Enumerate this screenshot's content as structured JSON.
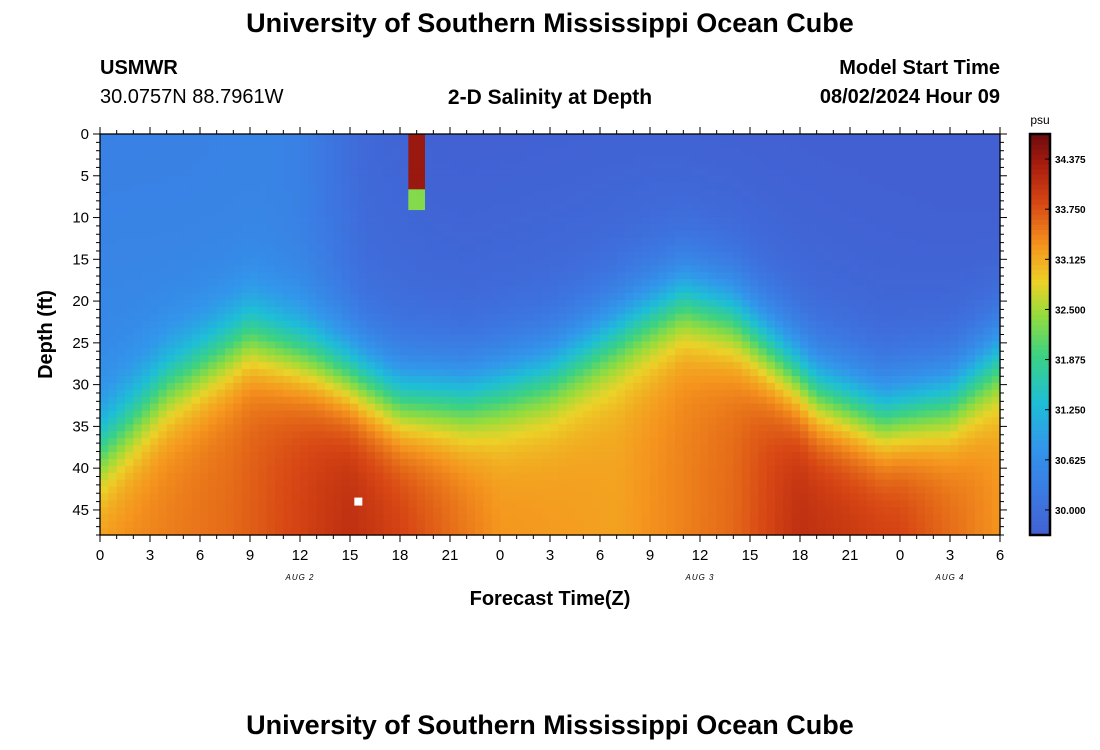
{
  "page": {
    "title_top": "University of Southern Mississippi Ocean Cube",
    "title_bottom": "University of Southern Mississippi Ocean Cube",
    "station": {
      "id": "USMWR",
      "coords": "30.0757N  88.7961W"
    },
    "chart_title": "2-D Salinity at Depth",
    "model_start": {
      "label": "Model Start Time",
      "value": "08/02/2024 Hour 09"
    }
  },
  "chart_data": {
    "type": "heatmap",
    "title": "2-D Salinity at Depth",
    "xlabel": "Forecast Time(Z)",
    "ylabel": "Depth (ft)",
    "x_range_hours": [
      0,
      54
    ],
    "x_ticks": [
      "0",
      "3",
      "6",
      "9",
      "12",
      "15",
      "18",
      "21",
      "0",
      "3",
      "6",
      "9",
      "12",
      "15",
      "18",
      "21",
      "0",
      "3",
      "6"
    ],
    "day_labels": [
      {
        "label": "AUG 2",
        "hour": 12
      },
      {
        "label": "AUG 3",
        "hour": 36
      },
      {
        "label": "AUG 4",
        "hour": 51
      }
    ],
    "y_range_ft": [
      0,
      48
    ],
    "y_ticks": [
      0,
      5,
      10,
      15,
      20,
      25,
      30,
      35,
      40,
      45
    ],
    "colorbar": {
      "unit": "psu",
      "range": [
        29.6875,
        34.6875
      ],
      "ticks": [
        "34.375",
        "33.750",
        "33.125",
        "32.500",
        "31.875",
        "31.250",
        "30.625",
        "30.000"
      ]
    },
    "grid": false,
    "halocline_depth_ft": [
      {
        "hour": 0,
        "depth": 38
      },
      {
        "hour": 4,
        "depth": 30
      },
      {
        "hour": 9,
        "depth": 24
      },
      {
        "hour": 13,
        "depth": 27
      },
      {
        "hour": 18,
        "depth": 32
      },
      {
        "hour": 22,
        "depth": 32
      },
      {
        "hour": 27,
        "depth": 29
      },
      {
        "hour": 32,
        "depth": 23
      },
      {
        "hour": 35,
        "depth": 20
      },
      {
        "hour": 38,
        "depth": 22
      },
      {
        "hour": 43,
        "depth": 31
      },
      {
        "hour": 47,
        "depth": 34
      },
      {
        "hour": 51,
        "depth": 32
      },
      {
        "hour": 54,
        "depth": 27
      }
    ],
    "surface_salinity_psu": [
      {
        "hour": 0,
        "value": 30.6
      },
      {
        "hour": 5,
        "value": 30.5
      },
      {
        "hour": 12,
        "value": 30.4
      },
      {
        "hour": 16,
        "value": 30.0
      },
      {
        "hour": 22,
        "value": 29.95
      },
      {
        "hour": 33,
        "value": 30.0
      },
      {
        "hour": 40,
        "value": 29.95
      },
      {
        "hour": 54,
        "value": 29.85
      }
    ],
    "bottom_salinity_psu": [
      {
        "hour": 0,
        "value": 33.3
      },
      {
        "hour": 8,
        "value": 33.6
      },
      {
        "hour": 15,
        "value": 34.1
      },
      {
        "hour": 18,
        "value": 33.9
      },
      {
        "hour": 24,
        "value": 33.3
      },
      {
        "hour": 31,
        "value": 33.2
      },
      {
        "hour": 38,
        "value": 33.6
      },
      {
        "hour": 42,
        "value": 34.1
      },
      {
        "hour": 48,
        "value": 33.9
      },
      {
        "hour": 54,
        "value": 33.3
      }
    ],
    "anomaly": {
      "hour": 19,
      "depth_range_ft": [
        0,
        9
      ],
      "value": 34.4
    },
    "marker": {
      "hour": 15.5,
      "depth": 44
    }
  }
}
